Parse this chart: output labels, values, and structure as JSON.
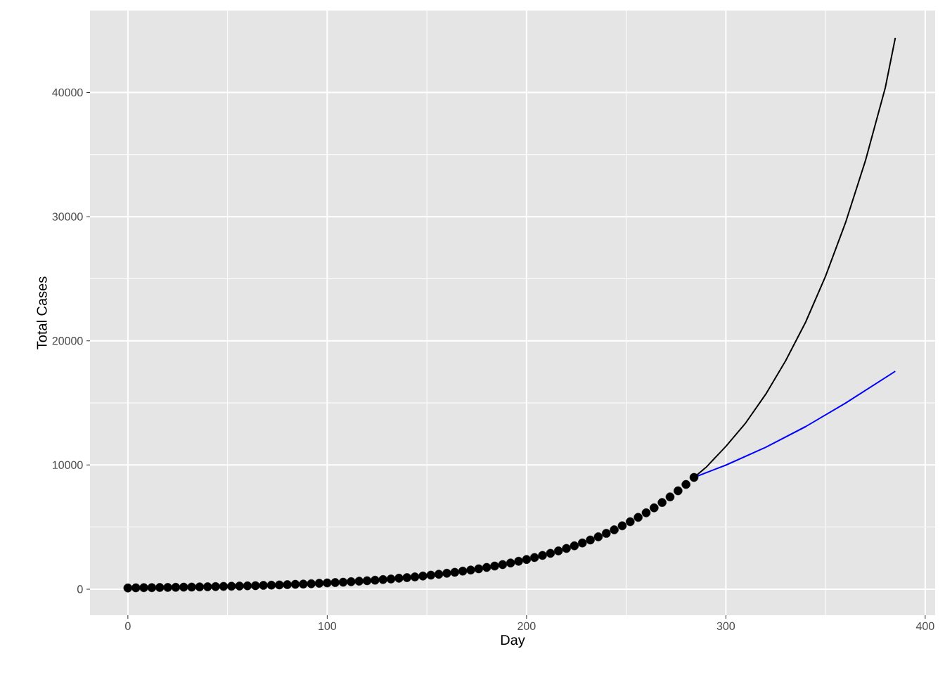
{
  "chart_data": {
    "type": "line",
    "xlabel": "Day",
    "ylabel": "Total Cases",
    "xlim": [
      -19,
      405
    ],
    "ylim": [
      -2100,
      46600
    ],
    "xticks": [
      0,
      100,
      200,
      300,
      400
    ],
    "yticks": [
      0,
      10000,
      20000,
      30000,
      40000
    ],
    "grid": true,
    "legend": false,
    "series": [
      {
        "type": "scatter",
        "marker": "circle",
        "color": "#000000",
        "x": [
          0,
          4,
          8,
          12,
          16,
          20,
          24,
          28,
          32,
          36,
          40,
          44,
          48,
          52,
          56,
          60,
          64,
          68,
          72,
          76,
          80,
          84,
          88,
          92,
          96,
          100,
          104,
          108,
          112,
          116,
          120,
          124,
          128,
          132,
          136,
          140,
          144,
          148,
          152,
          156,
          160,
          164,
          168,
          172,
          176,
          180,
          184,
          188,
          192,
          196,
          200,
          204,
          208,
          212,
          216,
          220,
          224,
          228,
          232,
          236,
          240,
          244,
          248,
          252,
          256,
          260,
          264,
          268,
          272,
          276,
          280,
          284
        ],
        "values": [
          100,
          110,
          120,
          120,
          130,
          140,
          150,
          160,
          170,
          180,
          190,
          210,
          220,
          230,
          250,
          270,
          280,
          300,
          320,
          340,
          360,
          390,
          410,
          440,
          470,
          500,
          530,
          560,
          600,
          640,
          680,
          720,
          770,
          820,
          880,
          930,
          990,
          1060,
          1130,
          1200,
          1280,
          1360,
          1450,
          1540,
          1640,
          1750,
          1860,
          1980,
          2110,
          2250,
          2390,
          2550,
          2720,
          2890,
          3080,
          3280,
          3490,
          3720,
          3960,
          4220,
          4490,
          4780,
          5100,
          5430,
          5780,
          6150,
          6550,
          6980,
          7430,
          7920,
          8430,
          9000
        ]
      },
      {
        "color": "#000000",
        "x": [
          284,
          290,
          300,
          310,
          320,
          330,
          340,
          350,
          360,
          370,
          380,
          385
        ],
        "values": [
          9000,
          9800,
          11500,
          13400,
          15700,
          18400,
          21500,
          25200,
          29500,
          34500,
          40400,
          44400
        ]
      },
      {
        "color": "#0000ff",
        "x": [
          284,
          300,
          320,
          340,
          360,
          385
        ],
        "values": [
          9000,
          9990,
          11430,
          13090,
          14980,
          17550
        ]
      }
    ]
  }
}
